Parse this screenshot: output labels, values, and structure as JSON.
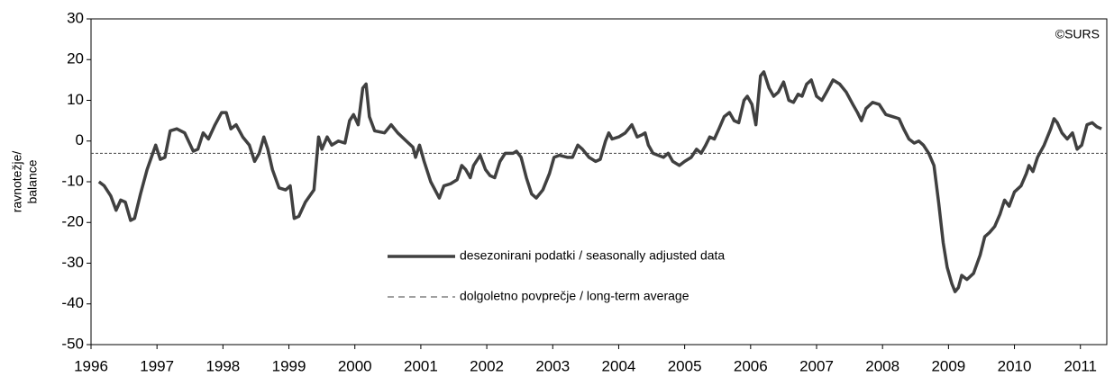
{
  "chart_data": {
    "type": "line",
    "ylabel": [
      "ravnotežje/",
      "balance"
    ],
    "annotation": "©SURS",
    "xlim": [
      1996,
      2011.4
    ],
    "xticks": [
      1996,
      1997,
      1998,
      1999,
      2000,
      2001,
      2002,
      2003,
      2004,
      2005,
      2006,
      2007,
      2008,
      2009,
      2010,
      2011
    ],
    "ylim": [
      -50,
      30
    ],
    "yticks": [
      -50,
      -40,
      -30,
      -20,
      -10,
      0,
      10,
      20,
      30
    ],
    "series": [
      {
        "name": "desezonirani podatki / seasonally adjusted data",
        "color": "#404040",
        "x": [
          1996.12,
          1996.2,
          1996.3,
          1996.38,
          1996.45,
          1996.52,
          1996.6,
          1996.66,
          1996.75,
          1996.85,
          1996.98,
          1997.05,
          1997.12,
          1997.2,
          1997.3,
          1997.42,
          1997.55,
          1997.62,
          1997.7,
          1997.78,
          1997.88,
          1997.98,
          1998.05,
          1998.12,
          1998.2,
          1998.3,
          1998.4,
          1998.48,
          1998.55,
          1998.62,
          1998.68,
          1998.75,
          1998.85,
          1998.95,
          1999.02,
          1999.08,
          1999.15,
          1999.25,
          1999.38,
          1999.45,
          1999.5,
          1999.58,
          1999.65,
          1999.75,
          1999.85,
          1999.92,
          1999.98,
          2000.05,
          2000.12,
          2000.17,
          2000.22,
          2000.3,
          2000.45,
          2000.55,
          2000.65,
          2000.78,
          2000.88,
          2000.92,
          2000.98,
          2001.05,
          2001.15,
          2001.28,
          2001.35,
          2001.45,
          2001.55,
          2001.62,
          2001.68,
          2001.75,
          2001.8,
          2001.9,
          2001.98,
          2002.05,
          2002.12,
          2002.2,
          2002.28,
          2002.4,
          2002.45,
          2002.52,
          2002.6,
          2002.68,
          2002.75,
          2002.85,
          2002.95,
          2003.02,
          2003.1,
          2003.22,
          2003.3,
          2003.38,
          2003.45,
          2003.55,
          2003.65,
          2003.72,
          2003.8,
          2003.85,
          2003.9,
          2004.0,
          2004.1,
          2004.2,
          2004.28,
          2004.35,
          2004.4,
          2004.45,
          2004.52,
          2004.6,
          2004.68,
          2004.75,
          2004.82,
          2004.92,
          2005.0,
          2005.1,
          2005.18,
          2005.25,
          2005.32,
          2005.38,
          2005.45,
          2005.52,
          2005.6,
          2005.68,
          2005.75,
          2005.82,
          2005.9,
          2005.95,
          2006.02,
          2006.08,
          2006.15,
          2006.2,
          2006.28,
          2006.35,
          2006.42,
          2006.5,
          2006.58,
          2006.65,
          2006.72,
          2006.78,
          2006.85,
          2006.92,
          2007.0,
          2007.08,
          2007.15,
          2007.25,
          2007.35,
          2007.45,
          2007.55,
          2007.62,
          2007.68,
          2007.75,
          2007.85,
          2007.95,
          2008.05,
          2008.15,
          2008.25,
          2008.32,
          2008.4,
          2008.48,
          2008.55,
          2008.62,
          2008.7,
          2008.78,
          2008.85,
          2008.92,
          2008.98,
          2009.05,
          2009.1,
          2009.15,
          2009.2,
          2009.28,
          2009.38,
          2009.48,
          2009.55,
          2009.62,
          2009.7,
          2009.78,
          2009.85,
          2009.92,
          2010.0,
          2010.1,
          2010.18,
          2010.22,
          2010.28,
          2010.35,
          2010.45,
          2010.55,
          2010.6,
          2010.65,
          2010.72,
          2010.8,
          2010.88,
          2010.95,
          2011.02,
          2011.1,
          2011.18,
          2011.25,
          2011.32
        ],
        "values": [
          -10,
          -11,
          -13.5,
          -17,
          -14.5,
          -15,
          -19.5,
          -19,
          -13,
          -7,
          -1,
          -4.5,
          -4,
          2.5,
          3,
          2,
          -2.5,
          -2,
          2,
          0.5,
          4,
          7,
          7,
          3,
          4,
          1,
          -1,
          -5,
          -3,
          1,
          -2,
          -7,
          -11.5,
          -12,
          -11,
          -19,
          -18.5,
          -15,
          -12,
          1,
          -2,
          1,
          -1,
          0,
          -0.5,
          5,
          6.5,
          4,
          13,
          14,
          6,
          2.5,
          2,
          4,
          2,
          0,
          -1.5,
          -4,
          -1,
          -5,
          -10,
          -14,
          -11,
          -10.5,
          -9.5,
          -6,
          -7,
          -9,
          -6,
          -3.5,
          -7,
          -8.5,
          -9,
          -5,
          -3,
          -3,
          -2.5,
          -4,
          -9,
          -13,
          -14,
          -12,
          -8,
          -4,
          -3.5,
          -4,
          -4,
          -1,
          -2,
          -4,
          -5,
          -4.5,
          0,
          2,
          0.5,
          1,
          2,
          4,
          1,
          1.5,
          2,
          -1,
          -3,
          -3.5,
          -4,
          -3,
          -5,
          -6,
          -5,
          -4,
          -2,
          -3,
          -1,
          1,
          0.5,
          3,
          6,
          7,
          5,
          4.5,
          10,
          11,
          9,
          4,
          16,
          17,
          13,
          11,
          12,
          14.5,
          10,
          9.5,
          11.5,
          11,
          14,
          15,
          11,
          10,
          12,
          15,
          14,
          12,
          9,
          7,
          5,
          8,
          9.5,
          9,
          6.5,
          6,
          5.5,
          3,
          0.5,
          -0.5,
          0,
          -1,
          -3,
          -6,
          -15,
          -25,
          -31,
          -35,
          -37,
          -36,
          -33,
          -34,
          -32.5,
          -28,
          -23.5,
          -22.5,
          -21,
          -18,
          -14.5,
          -16,
          -12.5,
          -11,
          -8,
          -6,
          -7.5,
          -4,
          -1,
          3,
          5.5,
          4.5,
          2,
          0.5,
          2,
          -2,
          -1,
          4,
          4.5,
          3.5,
          3
        ]
      }
    ],
    "hlines": [
      {
        "name": "dolgoletno povprečje / long-term average",
        "value": -3,
        "color": "#404040",
        "style": "dashed"
      }
    ]
  }
}
